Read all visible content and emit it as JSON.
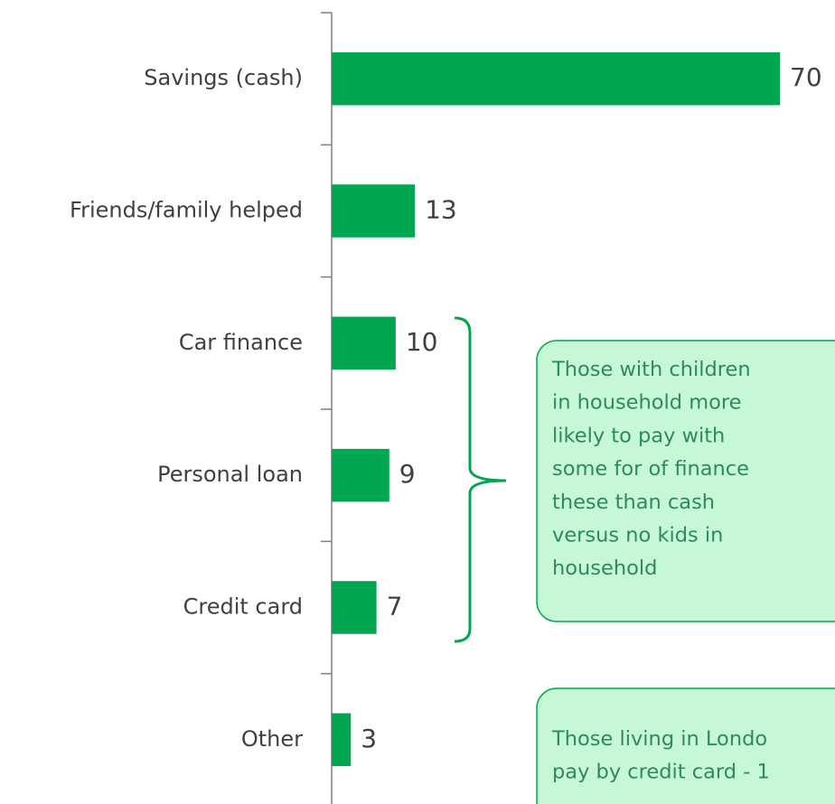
{
  "chart_data": {
    "type": "barh",
    "categories": [
      "Savings (cash)",
      "Friends/family helped",
      "Car finance",
      "Personal loan",
      "Credit card",
      "Other"
    ],
    "values": [
      70,
      13,
      10,
      9,
      7,
      3
    ],
    "color": "#00a650",
    "xlim": [
      0,
      70
    ],
    "annotations": [
      {
        "lines": [
          "Those with children",
          "in household more",
          "likely to pay with",
          "some for of finance",
          "these than cash",
          "versus no kids in",
          "household"
        ]
      },
      {
        "lines": [
          "Those living in Londo",
          "pay by credit card - 1"
        ]
      }
    ]
  }
}
